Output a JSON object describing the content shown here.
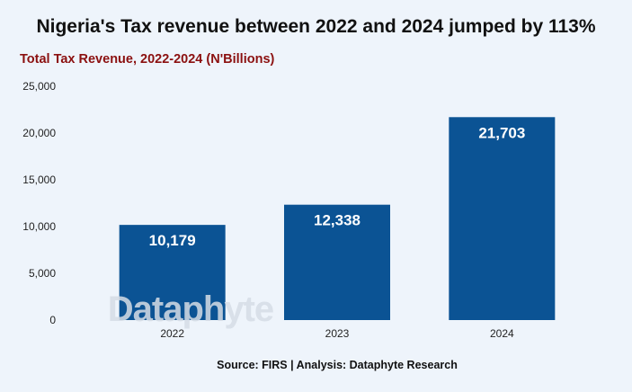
{
  "title": "Nigeria's Tax revenue between 2022 and 2024 jumped by 113%",
  "subtitle": "Total Tax Revenue, 2022-2024 (N'Billions)",
  "source": "Source: FIRS | Analysis: Dataphyte Research",
  "watermark": "Dataphyte",
  "chart_data": {
    "type": "bar",
    "categories": [
      "2022",
      "2023",
      "2024"
    ],
    "values": [
      10179,
      12338,
      21703
    ],
    "data_labels": [
      "10,179",
      "12,338",
      "21,703"
    ],
    "ylim": [
      0,
      25000
    ],
    "yticks": [
      "0",
      "5,000",
      "10,000",
      "15,000",
      "20,000",
      "25,000"
    ],
    "ytick_values": [
      0,
      5000,
      10000,
      15000,
      20000,
      25000
    ],
    "grid": false,
    "legend": "none",
    "bar_color": "#0b5394"
  }
}
